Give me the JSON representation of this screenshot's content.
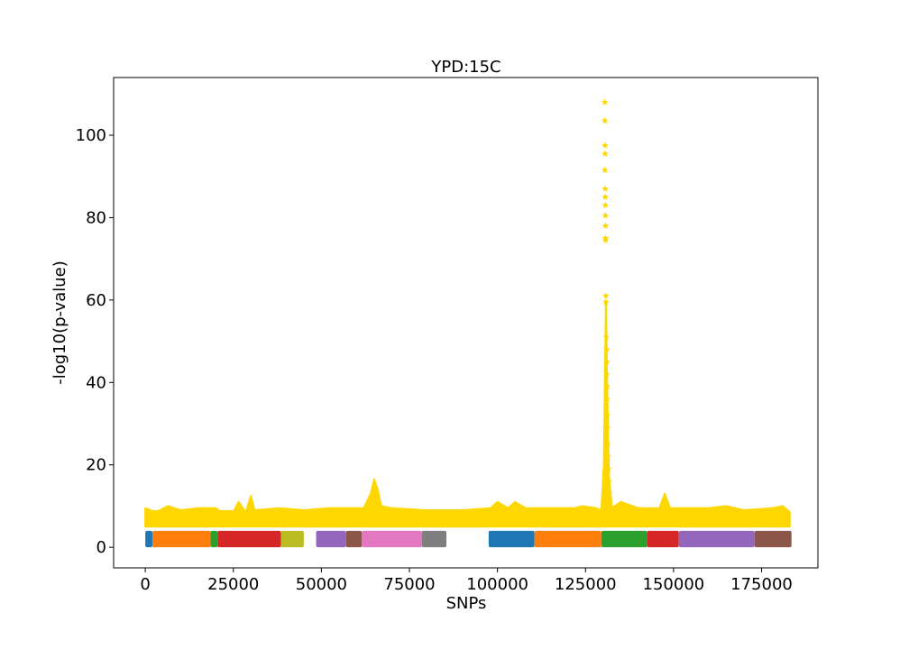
{
  "chart_data": {
    "type": "scatter",
    "title": "YPD:15C",
    "xlabel": "SNPs",
    "ylabel": "-log10(p-value)",
    "xlim": [
      -9000,
      191000
    ],
    "ylim": [
      -5,
      114
    ],
    "xticks": [
      0,
      25000,
      50000,
      75000,
      100000,
      125000,
      150000,
      175000
    ],
    "yticks": [
      0,
      20,
      40,
      60,
      80,
      100
    ],
    "grid": false,
    "series": [
      {
        "kind": "chromosome-band",
        "marker": "square",
        "y_range": [
          0,
          4
        ],
        "bands": [
          {
            "start": 0,
            "end": 2000,
            "color": "#1f77b4"
          },
          {
            "start": 2000,
            "end": 18500,
            "color": "#ff7f0e"
          },
          {
            "start": 18500,
            "end": 20500,
            "color": "#2ca02c"
          },
          {
            "start": 20500,
            "end": 38500,
            "color": "#d62728"
          },
          {
            "start": 38500,
            "end": 45000,
            "color": "#bcbd22"
          },
          {
            "start": 48500,
            "end": 57000,
            "color": "#9467bd"
          },
          {
            "start": 57000,
            "end": 61500,
            "color": "#8c564b"
          },
          {
            "start": 61500,
            "end": 78500,
            "color": "#e377c2"
          },
          {
            "start": 78500,
            "end": 85500,
            "color": "#7f7f7f"
          },
          {
            "start": 97500,
            "end": 110500,
            "color": "#1f77b4"
          },
          {
            "start": 110500,
            "end": 129500,
            "color": "#ff7f0e"
          },
          {
            "start": 129500,
            "end": 142500,
            "color": "#2ca02c"
          },
          {
            "start": 142500,
            "end": 151500,
            "color": "#d62728"
          },
          {
            "start": 151500,
            "end": 173000,
            "color": "#9467bd"
          },
          {
            "start": 173000,
            "end": 183500,
            "color": "#8c564b"
          }
        ]
      },
      {
        "kind": "significance",
        "marker": "star",
        "color": "#ffd700",
        "baseline_band": {
          "start": 0,
          "end": 183000,
          "low": 5,
          "high": 9
        },
        "profile": [
          [
            0,
            9.5
          ],
          [
            3000,
            8.5
          ],
          [
            6500,
            10
          ],
          [
            10000,
            9
          ],
          [
            15000,
            9.5
          ],
          [
            20000,
            9.5
          ],
          [
            24000,
            7
          ],
          [
            26500,
            11
          ],
          [
            28500,
            8.5
          ],
          [
            30000,
            12.5
          ],
          [
            31000,
            9
          ],
          [
            38000,
            9.5
          ],
          [
            45000,
            9
          ],
          [
            52000,
            9.5
          ],
          [
            58000,
            9.5
          ],
          [
            62000,
            9.5
          ],
          [
            64000,
            13
          ],
          [
            65000,
            16.5
          ],
          [
            66000,
            14
          ],
          [
            67000,
            10
          ],
          [
            70000,
            9.5
          ],
          [
            80000,
            9
          ],
          [
            90000,
            9
          ],
          [
            98000,
            9.5
          ],
          [
            100000,
            11
          ],
          [
            103000,
            9.5
          ],
          [
            105000,
            11
          ],
          [
            108000,
            9.5
          ],
          [
            115000,
            9.5
          ],
          [
            122000,
            9.5
          ],
          [
            124000,
            10
          ],
          [
            128000,
            9.5
          ],
          [
            129500,
            9
          ],
          [
            130200,
            20
          ],
          [
            130800,
            60
          ],
          [
            131200,
            37
          ],
          [
            131700,
            17
          ],
          [
            132500,
            9.5
          ],
          [
            135000,
            11
          ],
          [
            140000,
            9.5
          ],
          [
            146000,
            9.5
          ],
          [
            147500,
            13
          ],
          [
            149000,
            9.5
          ],
          [
            160000,
            9.5
          ],
          [
            165000,
            10
          ],
          [
            170000,
            9
          ],
          [
            178000,
            9.5
          ],
          [
            181000,
            10
          ],
          [
            183000,
            8.5
          ]
        ],
        "peak_points": [
          [
            130500,
            108
          ],
          [
            130500,
            103.5
          ],
          [
            130550,
            97.5
          ],
          [
            130550,
            95.5
          ],
          [
            130500,
            91.5
          ],
          [
            130600,
            87
          ],
          [
            130600,
            85
          ],
          [
            130650,
            83
          ],
          [
            130650,
            80.5
          ],
          [
            130700,
            78
          ],
          [
            130650,
            75
          ],
          [
            130700,
            74.5
          ],
          [
            130800,
            61
          ],
          [
            130800,
            59.5
          ],
          [
            130900,
            51
          ],
          [
            131000,
            48
          ],
          [
            131000,
            45
          ],
          [
            131000,
            42
          ],
          [
            131100,
            39
          ],
          [
            131100,
            36
          ],
          [
            131200,
            32
          ],
          [
            131200,
            29
          ],
          [
            131300,
            25
          ],
          [
            131400,
            22
          ],
          [
            131500,
            19
          ],
          [
            131600,
            16
          ],
          [
            131700,
            13
          ]
        ]
      }
    ]
  }
}
